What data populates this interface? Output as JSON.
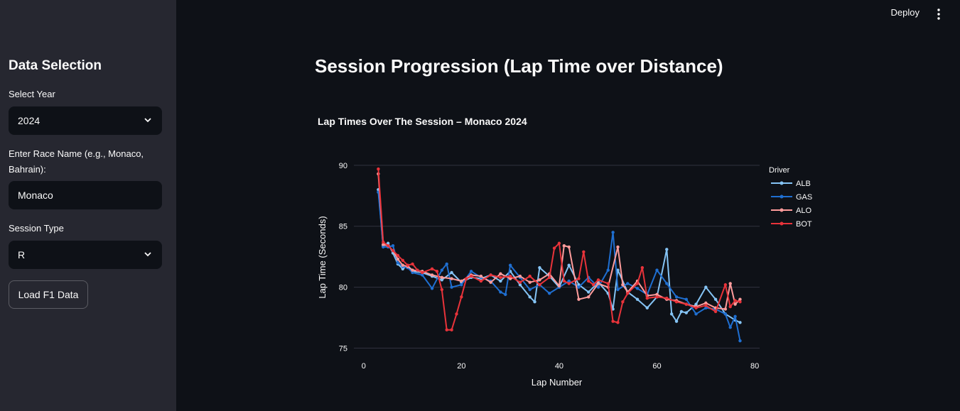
{
  "sidebar": {
    "title": "Data Selection",
    "year_label": "Select Year",
    "year_value": "2024",
    "race_label_line1": "Enter Race Name (e.g., Monaco,",
    "race_label_line2": "Bahrain):",
    "race_value": "Monaco",
    "session_label": "Session Type",
    "session_value": "R",
    "load_button": "Load F1 Data"
  },
  "topbar": {
    "deploy_label": "Deploy"
  },
  "main": {
    "title": "Session Progression (Lap Time over Distance)"
  },
  "colors": {
    "ALB": "#85c4f5",
    "GAS": "#1f6fd1",
    "ALO": "#ff9c9c",
    "BOT": "#e8333a",
    "grid": "#31333f",
    "bg": "#0e1117"
  },
  "chart_data": {
    "type": "line",
    "title": "Lap Times Over The Session – Monaco 2024",
    "xlabel": "Lap Number",
    "ylabel": "Lap Time (Seconds)",
    "xlim": [
      -2,
      81
    ],
    "ylim": [
      74.5,
      90.4
    ],
    "xticks": [
      0,
      20,
      40,
      60,
      80
    ],
    "yticks": [
      75,
      80,
      85,
      90
    ],
    "legend_title": "Driver",
    "legend_position": "right",
    "series": [
      {
        "name": "ALB",
        "color": "#85c4f5",
        "x": [
          3,
          4,
          5,
          6,
          7,
          8,
          9,
          10,
          12,
          14,
          16,
          18,
          20,
          22,
          24,
          26,
          28,
          30,
          32,
          34,
          35,
          36,
          38,
          40,
          42,
          44,
          46,
          48,
          50,
          51,
          52,
          54,
          56,
          58,
          60,
          62,
          63,
          64,
          65,
          66,
          68,
          70,
          72,
          74,
          76,
          77
        ],
        "y": [
          88.0,
          83.4,
          83.6,
          82.8,
          81.9,
          81.5,
          81.8,
          81.3,
          81.2,
          80.9,
          80.6,
          81.2,
          80.4,
          80.8,
          80.7,
          81.0,
          80.5,
          81.3,
          80.2,
          79.2,
          78.8,
          81.6,
          80.9,
          80.0,
          81.8,
          80.2,
          79.6,
          80.4,
          79.5,
          78.2,
          81.4,
          79.6,
          79.0,
          78.3,
          79.2,
          83.1,
          77.8,
          77.2,
          78.0,
          77.9,
          78.6,
          80.0,
          79.0,
          77.8,
          77.3,
          77.1
        ]
      },
      {
        "name": "GAS",
        "color": "#1f6fd1",
        "x": [
          3,
          4,
          5,
          6,
          7,
          8,
          9,
          10,
          12,
          14,
          16,
          17,
          18,
          20,
          22,
          24,
          26,
          28,
          29,
          30,
          32,
          34,
          36,
          38,
          40,
          42,
          44,
          46,
          48,
          50,
          51,
          52,
          54,
          56,
          58,
          60,
          62,
          64,
          66,
          68,
          70,
          72,
          74,
          75,
          76,
          77
        ],
        "y": [
          87.8,
          83.3,
          83.3,
          83.4,
          82.0,
          81.7,
          81.6,
          81.2,
          81.0,
          79.9,
          81.4,
          81.9,
          80.0,
          80.2,
          81.3,
          80.8,
          80.5,
          79.6,
          79.4,
          81.8,
          80.8,
          79.8,
          80.2,
          79.5,
          80.0,
          80.5,
          80.0,
          80.8,
          80.0,
          81.4,
          84.5,
          79.8,
          80.3,
          79.9,
          79.4,
          81.4,
          80.3,
          79.2,
          79.0,
          77.8,
          78.3,
          78.2,
          77.8,
          76.7,
          77.6,
          75.6
        ]
      },
      {
        "name": "ALO",
        "color": "#ff9c9c",
        "x": [
          3,
          4,
          5,
          6,
          7,
          8,
          9,
          10,
          12,
          14,
          16,
          18,
          20,
          22,
          24,
          26,
          28,
          30,
          32,
          34,
          36,
          38,
          40,
          41,
          42,
          44,
          46,
          48,
          50,
          52,
          53,
          54,
          56,
          58,
          60,
          62,
          64,
          66,
          68,
          70,
          72,
          74,
          75,
          76,
          77
        ],
        "y": [
          89.3,
          83.5,
          83.4,
          83.0,
          82.3,
          81.8,
          81.7,
          81.4,
          81.3,
          81.0,
          80.8,
          80.7,
          80.5,
          81.0,
          80.9,
          80.4,
          81.1,
          80.7,
          80.9,
          80.4,
          80.6,
          81.1,
          80.1,
          83.4,
          83.3,
          79.0,
          79.2,
          80.3,
          80.0,
          83.3,
          80.2,
          79.6,
          80.5,
          79.3,
          79.4,
          79.0,
          78.9,
          78.6,
          78.4,
          78.7,
          78.3,
          78.2,
          80.3,
          78.6,
          79.0
        ]
      },
      {
        "name": "BOT",
        "color": "#e8333a",
        "x": [
          3,
          4,
          5,
          6,
          7,
          8,
          9,
          10,
          11,
          12,
          14,
          15,
          16,
          17,
          18,
          19,
          20,
          21,
          22,
          24,
          26,
          28,
          30,
          32,
          34,
          36,
          38,
          39,
          40,
          41,
          42,
          44,
          45,
          46,
          47,
          48,
          50,
          51,
          52,
          53,
          54,
          56,
          57,
          58,
          60,
          62,
          64,
          66,
          68,
          70,
          72,
          74,
          75,
          76,
          77
        ],
        "y": [
          89.7,
          83.7,
          83.4,
          83.0,
          82.6,
          82.2,
          81.8,
          81.9,
          81.4,
          81.2,
          81.5,
          81.3,
          79.8,
          76.5,
          76.5,
          77.8,
          79.2,
          80.7,
          80.9,
          80.5,
          81.0,
          80.8,
          80.9,
          80.4,
          80.9,
          80.2,
          80.8,
          83.2,
          83.6,
          80.5,
          80.3,
          80.7,
          82.9,
          80.5,
          80.2,
          80.6,
          80.3,
          77.2,
          77.1,
          78.8,
          79.5,
          80.3,
          81.6,
          79.1,
          79.2,
          79.1,
          78.8,
          78.6,
          78.3,
          78.5,
          78.0,
          80.2,
          78.4,
          78.9,
          78.8
        ]
      }
    ]
  }
}
